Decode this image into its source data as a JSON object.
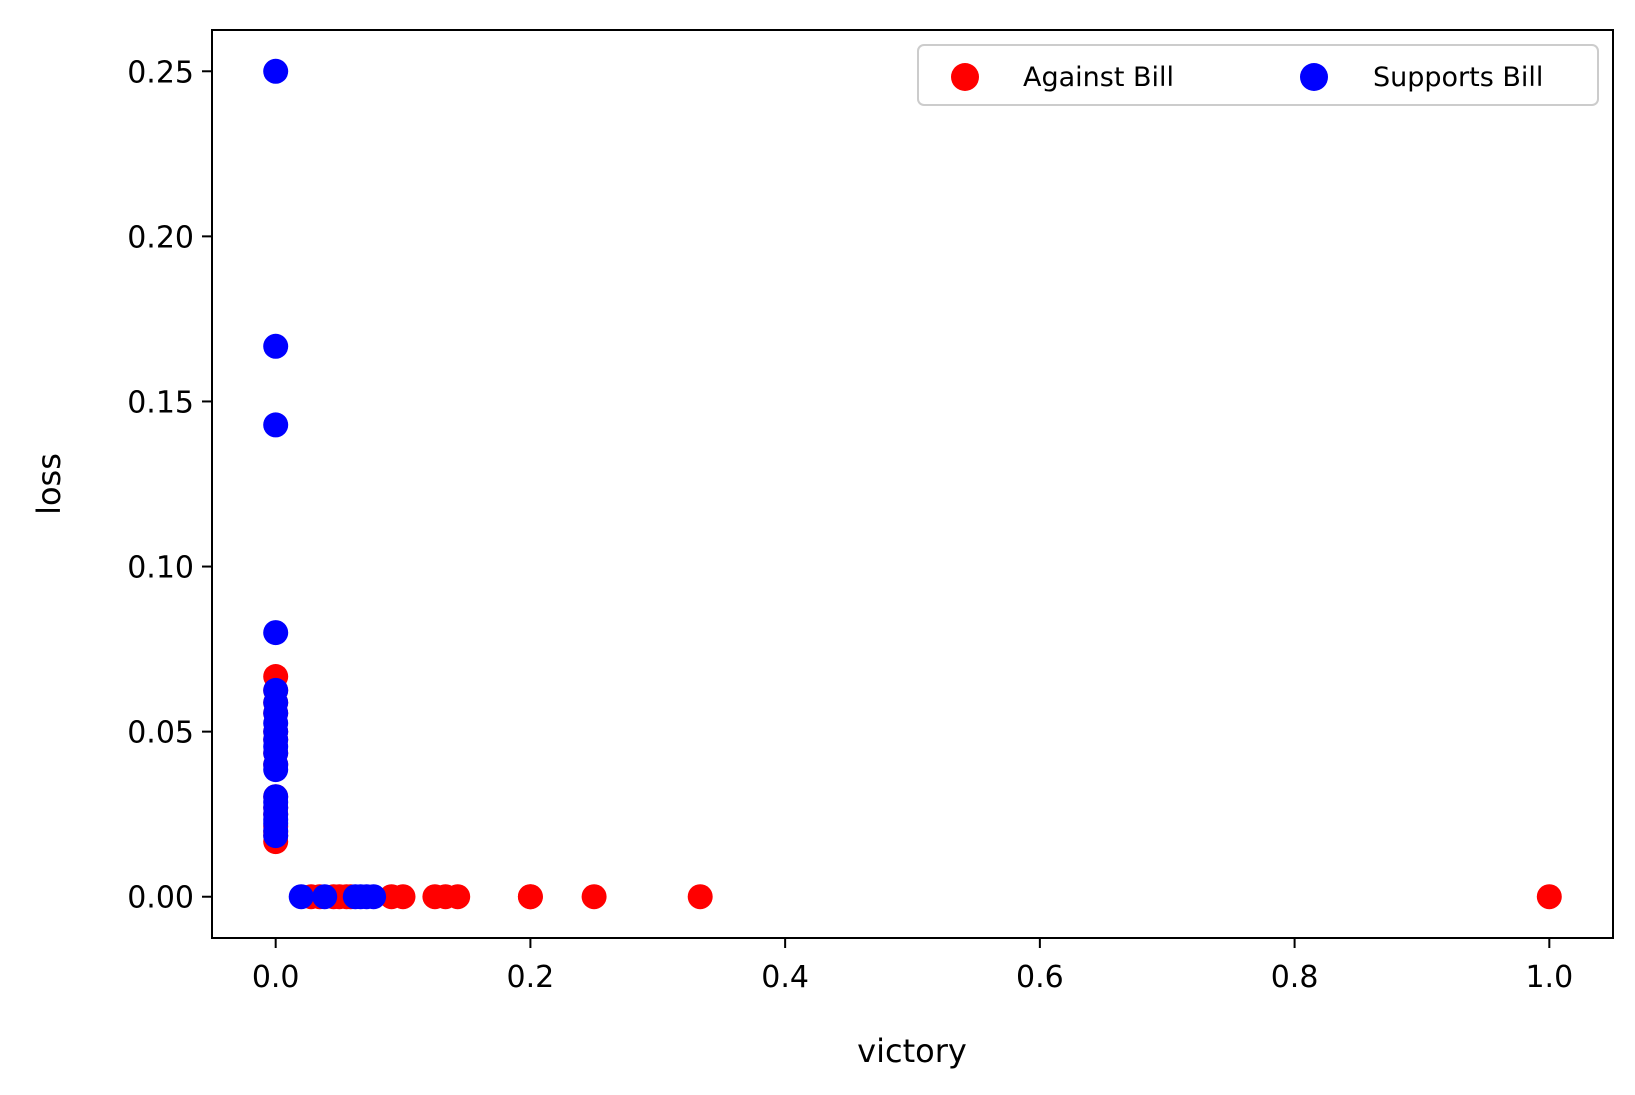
{
  "chart_data": {
    "type": "scatter",
    "title": "",
    "xlabel": "victory",
    "ylabel": "loss",
    "xlim": [
      -0.05,
      1.05
    ],
    "ylim": [
      -0.0125,
      0.2625
    ],
    "xticks": [
      0.0,
      0.2,
      0.4,
      0.6,
      0.8,
      1.0
    ],
    "xtick_labels": [
      "0.0",
      "0.2",
      "0.4",
      "0.6",
      "0.8",
      "1.0"
    ],
    "yticks": [
      0.0,
      0.05,
      0.1,
      0.15,
      0.2,
      0.25
    ],
    "ytick_labels": [
      "0.00",
      "0.05",
      "0.10",
      "0.15",
      "0.20",
      "0.25"
    ],
    "grid": false,
    "legend": {
      "placement": "top-right",
      "columns": 2
    },
    "series": [
      {
        "name": "Against Bill",
        "color": "#ff0000",
        "points": [
          [
            0,
            0.0667
          ],
          [
            0,
            0.0625
          ],
          [
            0,
            0.0588
          ],
          [
            0,
            0.0556
          ],
          [
            0,
            0.05
          ],
          [
            0,
            0.0476
          ],
          [
            0,
            0.0435
          ],
          [
            0,
            0.04
          ],
          [
            0,
            0.0303
          ],
          [
            0,
            0.027
          ],
          [
            0,
            0.025
          ],
          [
            0,
            0.0213
          ],
          [
            0,
            0.0196
          ],
          [
            0,
            0.0185
          ],
          [
            0,
            0.0167
          ],
          [
            0.0278,
            0
          ],
          [
            0.0345,
            0
          ],
          [
            0.0455,
            0
          ],
          [
            0.05,
            0
          ],
          [
            0.0556,
            0
          ],
          [
            0.0588,
            0
          ],
          [
            0.0909,
            0
          ],
          [
            0.1,
            0
          ],
          [
            0.125,
            0
          ],
          [
            0.1333,
            0
          ],
          [
            0.1429,
            0
          ],
          [
            0.2,
            0
          ],
          [
            0.2,
            0
          ],
          [
            0.25,
            0
          ],
          [
            0.3333,
            0
          ],
          [
            1.0,
            0
          ]
        ]
      },
      {
        "name": "Supports Bill",
        "color": "#0000ff",
        "points": [
          [
            0,
            0.25
          ],
          [
            0,
            0.1667
          ],
          [
            0,
            0.1429
          ],
          [
            0,
            0.08
          ],
          [
            0,
            0.0625
          ],
          [
            0,
            0.0588
          ],
          [
            0,
            0.0556
          ],
          [
            0,
            0.0526
          ],
          [
            0,
            0.05
          ],
          [
            0,
            0.0476
          ],
          [
            0,
            0.0455
          ],
          [
            0,
            0.0435
          ],
          [
            0,
            0.04
          ],
          [
            0,
            0.0385
          ],
          [
            0,
            0.0303
          ],
          [
            0,
            0.0286
          ],
          [
            0,
            0.027
          ],
          [
            0,
            0.025
          ],
          [
            0,
            0.0233
          ],
          [
            0,
            0.0222
          ],
          [
            0,
            0.02
          ],
          [
            0,
            0.0185
          ],
          [
            0.02,
            0
          ],
          [
            0.0385,
            0
          ],
          [
            0.0625,
            0
          ],
          [
            0.0667,
            0
          ],
          [
            0.0714,
            0
          ],
          [
            0.0769,
            0
          ]
        ]
      }
    ]
  }
}
